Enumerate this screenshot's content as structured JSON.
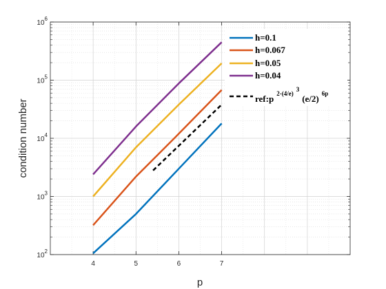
{
  "chart_data": {
    "type": "line",
    "y_scale": "log",
    "xlabel": "p",
    "ylabel": "condition number",
    "xlim": [
      3,
      10
    ],
    "ylim": [
      100,
      1000000
    ],
    "x_ticks": [
      {
        "value": 4,
        "label": "4"
      },
      {
        "value": 5,
        "label": "5"
      },
      {
        "value": 6,
        "label": "6"
      },
      {
        "value": 7,
        "label": "7"
      }
    ],
    "y_ticks": [
      {
        "value": 100,
        "base": "10",
        "exp": "2"
      },
      {
        "value": 1000,
        "base": "10",
        "exp": "3"
      },
      {
        "value": 10000,
        "base": "10",
        "exp": "4"
      },
      {
        "value": 100000,
        "base": "10",
        "exp": "5"
      },
      {
        "value": 1000000,
        "base": "10",
        "exp": "6"
      }
    ],
    "grid": true,
    "minor_grid": true,
    "legend_position": "top-right",
    "series": [
      {
        "name": "h=0.1",
        "color": "#0072BD",
        "style": "solid",
        "x": [
          4,
          5,
          6,
          7
        ],
        "y": [
          105,
          500,
          3000,
          18000
        ]
      },
      {
        "name": "h=0.067",
        "color": "#D95319",
        "style": "solid",
        "x": [
          4,
          5,
          6,
          7
        ],
        "y": [
          320,
          2200,
          12000,
          68000
        ]
      },
      {
        "name": "h=0.05",
        "color": "#EDB120",
        "style": "solid",
        "x": [
          4,
          5,
          6,
          7
        ],
        "y": [
          1000,
          7000,
          38000,
          195000
        ]
      },
      {
        "name": "h=0.04",
        "color": "#7E2F8E",
        "style": "solid",
        "x": [
          4,
          5,
          6,
          7
        ],
        "y": [
          2400,
          16000,
          88000,
          450000
        ]
      },
      {
        "name": "ref:p^{2-(4/e)^3}(e/2)^{6p}",
        "color": "#000000",
        "style": "dashed",
        "x": [
          5.4,
          7
        ],
        "y": [
          2800,
          38000
        ]
      }
    ],
    "legend_ref": {
      "prefix": "ref:p",
      "sup1": "2-(4/e)",
      "sup2": "3",
      "mid": "(e/2)",
      "sup3": "6p"
    }
  }
}
